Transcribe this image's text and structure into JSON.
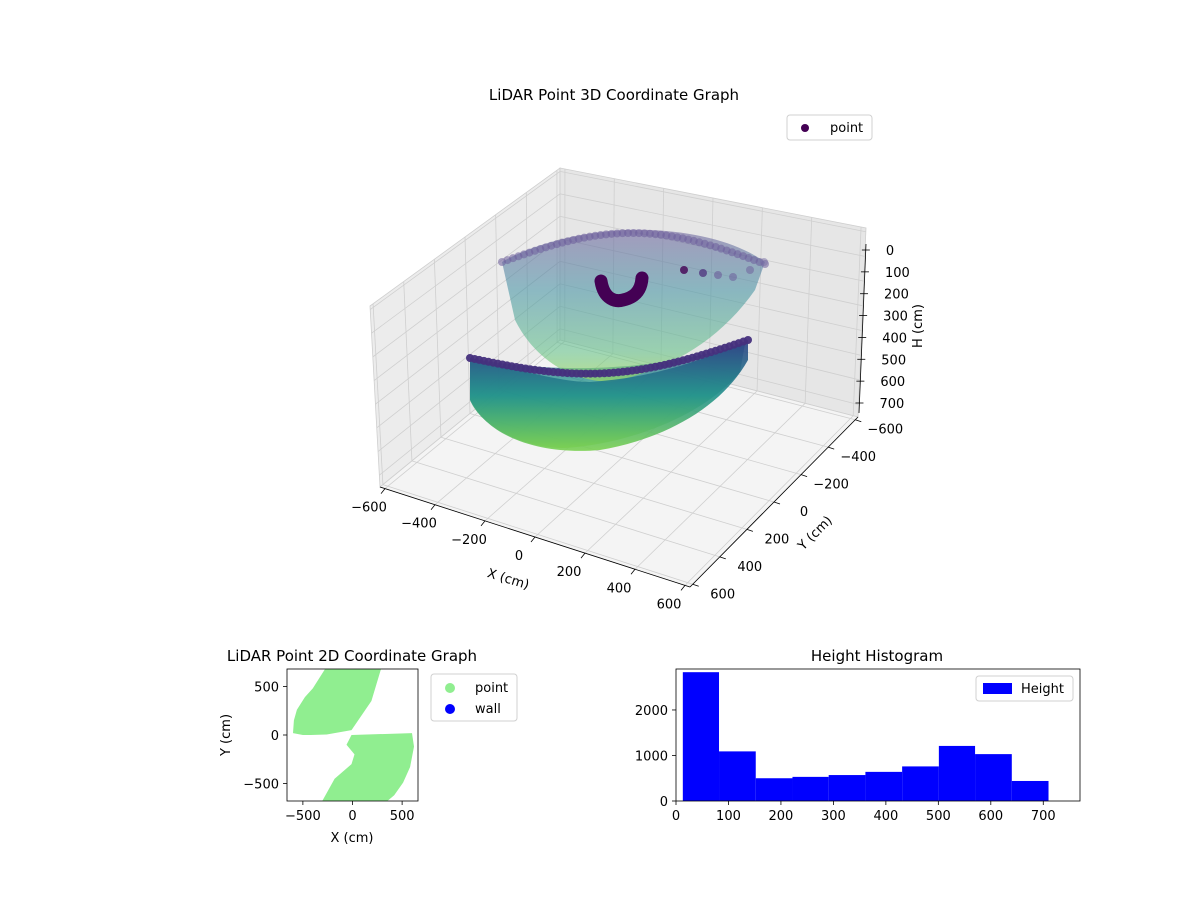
{
  "chart_data": [
    {
      "type": "scatter",
      "title": "LiDAR Point 3D Coordinate Graph",
      "xlabel": "X (cm)",
      "ylabel": "Y (cm)",
      "zlabel": "H (cm)",
      "x_ticks": [
        "−600",
        "−400",
        "−200",
        "0",
        "200",
        "400",
        "600"
      ],
      "y_ticks": [
        "−600",
        "−400",
        "−200",
        "0",
        "200",
        "400",
        "600"
      ],
      "z_ticks": [
        "0",
        "100",
        "200",
        "300",
        "400",
        "500",
        "600",
        "700"
      ],
      "z_inverted": true,
      "colormap": "viridis",
      "grid": true,
      "legend": {
        "entries": [
          "point"
        ],
        "placement": "upper-right"
      },
      "series_colors": {
        "point": "#440154"
      }
    },
    {
      "type": "scatter",
      "title": "LiDAR Point 2D Coordinate Graph",
      "xlabel": "X (cm)",
      "ylabel": "Y (cm)",
      "x_ticks": [
        -500,
        0,
        500
      ],
      "y_ticks": [
        -500,
        0,
        500
      ],
      "xlim": [
        -660,
        660
      ],
      "ylim": [
        -680,
        680
      ],
      "legend": {
        "entries": [
          "point",
          "wall"
        ],
        "placement": "outside-right"
      },
      "series": [
        {
          "name": "point",
          "color": "#90ee90",
          "region_polygon": [
            [
              -270,
              690
            ],
            [
              290,
              690
            ],
            [
              190,
              350
            ],
            [
              -10,
              50
            ],
            [
              -260,
              5
            ],
            [
              -420,
              0
            ],
            [
              -500,
              0
            ],
            [
              -600,
              20
            ],
            [
              -590,
              150
            ],
            [
              -560,
              260
            ],
            [
              -480,
              390
            ],
            [
              -400,
              480
            ]
          ]
        },
        {
          "name": "point",
          "color": "#90ee90",
          "region_polygon": [
            [
              -10,
              0
            ],
            [
              600,
              20
            ],
            [
              620,
              -120
            ],
            [
              580,
              -330
            ],
            [
              510,
              -490
            ],
            [
              420,
              -620
            ],
            [
              340,
              -690
            ],
            [
              -310,
              -690
            ],
            [
              -180,
              -450
            ],
            [
              -10,
              -300
            ],
            [
              20,
              -200
            ],
            [
              -60,
              -100
            ]
          ]
        },
        {
          "name": "wall",
          "color": "#0000ff",
          "points": []
        }
      ]
    },
    {
      "type": "bar",
      "title": "Height Histogram",
      "xlabel": "",
      "ylabel": "",
      "xlim": [
        0,
        770
      ],
      "ylim": [
        0,
        2900
      ],
      "x_ticks": [
        0,
        100,
        200,
        300,
        400,
        500,
        600,
        700
      ],
      "y_ticks": [
        0,
        1000,
        2000
      ],
      "bin_edges": [
        13,
        82,
        152,
        222,
        291,
        361,
        431,
        501,
        570,
        640,
        710
      ],
      "values": [
        2830,
        1090,
        500,
        530,
        570,
        640,
        760,
        1210,
        1030,
        440
      ],
      "color": "#0000ff",
      "legend": {
        "entries": [
          "Height"
        ],
        "placement": "upper-right"
      },
      "series": [
        {
          "name": "Height",
          "values": [
            2830,
            1090,
            500,
            530,
            570,
            640,
            760,
            1210,
            1030,
            440
          ]
        }
      ]
    }
  ]
}
